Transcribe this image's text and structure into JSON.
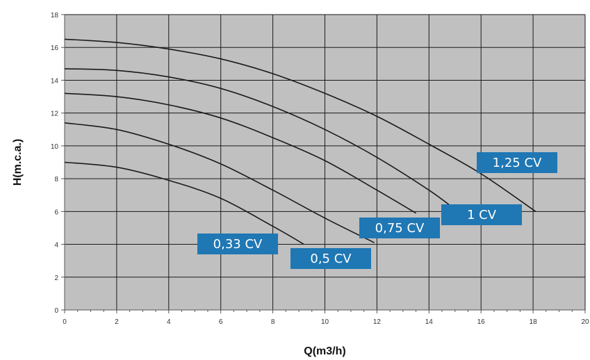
{
  "chart_data": {
    "type": "line",
    "title": "",
    "xlabel": "Q(m3/h)",
    "ylabel": "H(m.c.a.)",
    "xlim": [
      0,
      20
    ],
    "ylim": [
      0,
      18
    ],
    "xticks": [
      0,
      2,
      4,
      6,
      8,
      10,
      12,
      14,
      16,
      18,
      20
    ],
    "yticks": [
      0,
      2,
      4,
      6,
      8,
      10,
      12,
      14,
      16,
      18
    ],
    "grid": true,
    "plot_background": "#c0c0c0",
    "line_color": "#1a1a1a",
    "label_color": "#1f77b4",
    "series": [
      {
        "name": "0,33 CV",
        "x": [
          0,
          2,
          4,
          6,
          8,
          9.2
        ],
        "y": [
          9.0,
          8.7,
          7.9,
          6.8,
          5.1,
          4.0
        ]
      },
      {
        "name": "0,5 CV",
        "x": [
          0,
          2,
          4,
          6,
          8,
          10,
          11.9
        ],
        "y": [
          11.4,
          11.0,
          10.1,
          8.9,
          7.3,
          5.6,
          4.1
        ]
      },
      {
        "name": "0,75 CV",
        "x": [
          0,
          2,
          4,
          6,
          8,
          10,
          12,
          13.5
        ],
        "y": [
          13.2,
          13.0,
          12.5,
          11.7,
          10.5,
          9.1,
          7.3,
          5.9
        ]
      },
      {
        "name": "1 CV",
        "x": [
          0,
          2,
          4,
          6,
          8,
          10,
          12,
          14,
          15.2
        ],
        "y": [
          14.7,
          14.6,
          14.2,
          13.5,
          12.4,
          11.0,
          9.3,
          7.3,
          5.9
        ]
      },
      {
        "name": "1,25 CV",
        "x": [
          0,
          2,
          4,
          6,
          8,
          10,
          12,
          14,
          16,
          18.1
        ],
        "y": [
          16.5,
          16.3,
          15.9,
          15.3,
          14.4,
          13.2,
          11.8,
          10.1,
          8.3,
          6.0
        ]
      }
    ]
  }
}
